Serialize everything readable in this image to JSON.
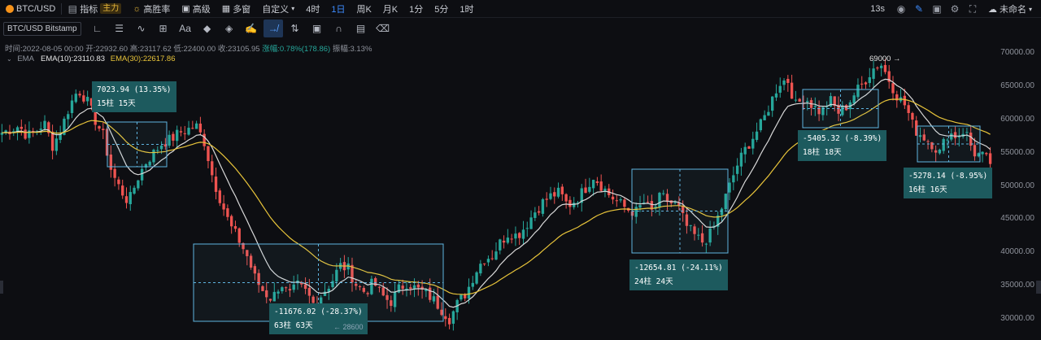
{
  "header": {
    "symbol": "BTC/USD",
    "items": [
      "指标",
      "高胜率",
      "高级",
      "多窗",
      "自定义",
      "4时",
      "1日",
      "周K",
      "月K",
      "1分",
      "5分",
      "1时"
    ],
    "main_badge": "主力",
    "active_interval": "1日",
    "refresh": "13s",
    "user": "未命名"
  },
  "toolbar": {
    "pair_label": "BTC/USD Bitstamp"
  },
  "ohlc": {
    "time_label": "时间:2022-08-05 00:00",
    "open": "开:22932.60",
    "high": "高:23117.62",
    "low": "低:22400.00",
    "close": "收:23105.95",
    "change": "涨幅:0.78%(178.86)",
    "amplitude": "振幅:3.13%"
  },
  "ema": {
    "label": "EMA",
    "ema10": "EMA(10):23110.83",
    "ema30": "EMA(30):22617.86"
  },
  "annotations": {
    "high_marker": "69000 →",
    "low_marker": "← 28600",
    "m1": {
      "line1": "7023.94 (13.35%)",
      "line2": "15柱 15天"
    },
    "m2": {
      "line1": "-11676.02 (-28.37%)",
      "line2": "63柱 63天"
    },
    "m3": {
      "line1": "-12654.81 (-24.11%)",
      "line2": "24柱 24天"
    },
    "m4": {
      "line1": "-5405.32 (-8.39%)",
      "line2": "18柱 18天"
    },
    "m5": {
      "line1": "-5278.14 (-8.95%)",
      "line2": "16柱 16天"
    }
  },
  "chart_data": {
    "type": "candlestick",
    "symbol": "BTC/USD",
    "exchange": "Bitstamp",
    "interval": "1日",
    "y_ticks": [
      30000,
      35000,
      40000,
      45000,
      50000,
      55000,
      60000,
      65000,
      70000
    ],
    "ylim": [
      27600,
      71000
    ],
    "colors": {
      "up": "#26a69a",
      "down": "#ef5350",
      "ema10": "#d9d9d9",
      "ema30": "#e8c43a",
      "measure": "#5fb4e0"
    },
    "price_path": [
      58000,
      58500,
      59000,
      57500,
      58200,
      59500,
      56000,
      58500,
      62000,
      64500,
      63000,
      60000,
      57500,
      52000,
      49500,
      47500,
      51000,
      53500,
      55000,
      56500,
      57000,
      58000,
      58500,
      59000,
      56500,
      51000,
      47500,
      44000,
      42000,
      39500,
      36000,
      34000,
      33000,
      35500,
      33500,
      35000,
      34000,
      32000,
      34000,
      35500,
      38000,
      37500,
      35000,
      34000,
      35500,
      33500,
      32500,
      34500,
      35500,
      34500,
      34000,
      33000,
      31500,
      30000,
      32500,
      34000,
      37000,
      39000,
      39500,
      41500,
      43000,
      42500,
      44000,
      46000,
      47500,
      48500,
      49000,
      47000,
      48000,
      49500,
      51500,
      50000,
      48500,
      47500,
      46500,
      46000,
      47500,
      46000,
      48500,
      47500,
      47000,
      44000,
      42500,
      41500,
      43000,
      46000,
      49500,
      53000,
      55500,
      57500,
      59500,
      62500,
      65500,
      66000,
      62000,
      63500,
      62000,
      61000,
      63000,
      61000,
      62000,
      64000,
      65500,
      67500,
      68500,
      66000,
      63500,
      62000,
      58500,
      57500,
      56500,
      55000,
      58000,
      57500,
      58500,
      55000,
      54500,
      53500
    ],
    "measurements": [
      {
        "change": 7023.94,
        "pct": 13.35,
        "bars": 15,
        "days": 15
      },
      {
        "change": -11676.02,
        "pct": -28.37,
        "bars": 63,
        "days": 63
      },
      {
        "change": -12654.81,
        "pct": -24.11,
        "bars": 24,
        "days": 24
      },
      {
        "change": -5405.32,
        "pct": -8.39,
        "bars": 18,
        "days": 18
      },
      {
        "change": -5278.14,
        "pct": -8.95,
        "bars": 16,
        "days": 16
      }
    ],
    "marked_high": 69000,
    "marked_low": 28600
  }
}
